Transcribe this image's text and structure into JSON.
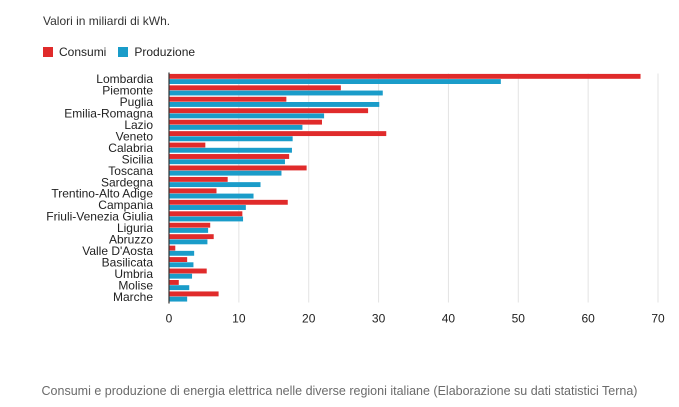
{
  "chart_data": {
    "type": "bar",
    "orientation": "horizontal",
    "subtitle": "Valori in miliardi di kWh.",
    "categories": [
      "Lombardia",
      "Piemonte",
      "Puglia",
      "Emilia-Romagna",
      "Lazio",
      "Veneto",
      "Calabria",
      "Sicilia",
      "Toscana",
      "Sardegna",
      "Trentino-Alto Adige",
      "Campania",
      "Friuli-Venezia Giulia",
      "Liguria",
      "Abruzzo",
      "Valle D'Aosta",
      "Basilicata",
      "Umbria",
      "Molise",
      "Marche"
    ],
    "series": [
      {
        "name": "Consumi",
        "color": "#e02b2b",
        "values": [
          67.5,
          24.6,
          16.8,
          28.5,
          21.9,
          31.1,
          5.2,
          17.2,
          19.7,
          8.4,
          6.8,
          17.0,
          10.5,
          5.9,
          6.4,
          0.9,
          2.6,
          5.4,
          1.4,
          7.1
        ]
      },
      {
        "name": "Produzione",
        "color": "#1a9cc9",
        "values": [
          47.5,
          30.6,
          30.1,
          22.2,
          19.1,
          17.7,
          17.6,
          16.6,
          16.1,
          13.1,
          12.1,
          11.0,
          10.6,
          5.6,
          5.5,
          3.6,
          3.5,
          3.3,
          2.9,
          2.6
        ]
      }
    ],
    "xlim": [
      0,
      70
    ],
    "xticks": [
      0,
      10,
      20,
      30,
      40,
      50,
      60,
      70
    ],
    "grid": true,
    "legend_position": "top-left"
  },
  "caption": "Consumi e produzione di energia elettrica nelle diverse regioni italiane (Elaborazione su dati statistici Terna)"
}
